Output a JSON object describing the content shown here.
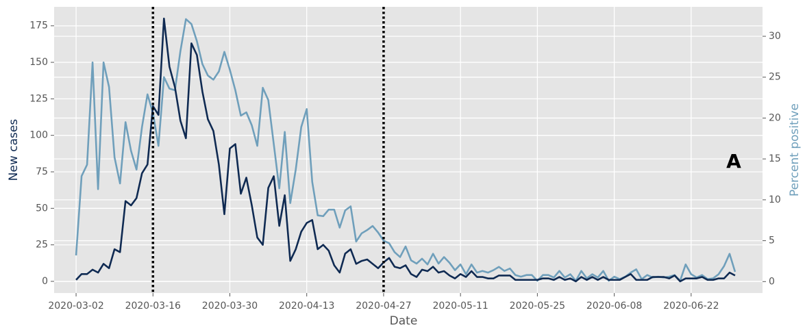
{
  "chart_data": {
    "type": "line",
    "x": [
      "2020-03-02",
      "2020-03-03",
      "2020-03-04",
      "2020-03-05",
      "2020-03-06",
      "2020-03-07",
      "2020-03-08",
      "2020-03-09",
      "2020-03-10",
      "2020-03-11",
      "2020-03-12",
      "2020-03-13",
      "2020-03-14",
      "2020-03-15",
      "2020-03-16",
      "2020-03-17",
      "2020-03-18",
      "2020-03-19",
      "2020-03-20",
      "2020-03-21",
      "2020-03-22",
      "2020-03-23",
      "2020-03-24",
      "2020-03-25",
      "2020-03-26",
      "2020-03-27",
      "2020-03-28",
      "2020-03-29",
      "2020-03-30",
      "2020-03-31",
      "2020-04-01",
      "2020-04-02",
      "2020-04-03",
      "2020-04-04",
      "2020-04-05",
      "2020-04-06",
      "2020-04-07",
      "2020-04-08",
      "2020-04-09",
      "2020-04-10",
      "2020-04-11",
      "2020-04-12",
      "2020-04-13",
      "2020-04-14",
      "2020-04-15",
      "2020-04-16",
      "2020-04-17",
      "2020-04-18",
      "2020-04-19",
      "2020-04-20",
      "2020-04-21",
      "2020-04-22",
      "2020-04-23",
      "2020-04-24",
      "2020-04-25",
      "2020-04-26",
      "2020-04-27",
      "2020-04-28",
      "2020-04-29",
      "2020-04-30",
      "2020-05-01",
      "2020-05-02",
      "2020-05-03",
      "2020-05-04",
      "2020-05-05",
      "2020-05-06",
      "2020-05-07",
      "2020-05-08",
      "2020-05-09",
      "2020-05-10",
      "2020-05-11",
      "2020-05-12",
      "2020-05-13",
      "2020-05-14",
      "2020-05-15",
      "2020-05-16",
      "2020-05-17",
      "2020-05-18",
      "2020-05-19",
      "2020-05-20",
      "2020-05-21",
      "2020-05-22",
      "2020-05-23",
      "2020-05-24",
      "2020-05-25",
      "2020-05-26",
      "2020-05-27",
      "2020-05-28",
      "2020-05-29",
      "2020-05-30",
      "2020-05-31",
      "2020-06-01",
      "2020-06-02",
      "2020-06-03",
      "2020-06-04",
      "2020-06-05",
      "2020-06-06",
      "2020-06-07",
      "2020-06-08",
      "2020-06-09",
      "2020-06-10",
      "2020-06-11",
      "2020-06-12",
      "2020-06-13",
      "2020-06-14",
      "2020-06-15",
      "2020-06-16",
      "2020-06-17",
      "2020-06-18",
      "2020-06-19",
      "2020-06-20",
      "2020-06-21",
      "2020-06-22",
      "2020-06-23",
      "2020-06-24",
      "2020-06-25",
      "2020-06-26",
      "2020-06-27",
      "2020-06-28",
      "2020-06-29",
      "2020-06-30"
    ],
    "series": [
      {
        "name": "New cases",
        "color": "#0f2a52",
        "axis": "y",
        "values": [
          1,
          5,
          5,
          8,
          6,
          12,
          9,
          22,
          20,
          55,
          52,
          57,
          74,
          80,
          120,
          114,
          180,
          147,
          133,
          110,
          98,
          163,
          155,
          130,
          111,
          103,
          80,
          46,
          91,
          94,
          60,
          71,
          52,
          30,
          25,
          64,
          72,
          38,
          59,
          14,
          22,
          34,
          40,
          42,
          22,
          25,
          21,
          11,
          6,
          19,
          22,
          12,
          14,
          15,
          12,
          9,
          13,
          16,
          10,
          9,
          11,
          5,
          3,
          8,
          7,
          10,
          6,
          7,
          4,
          2,
          5,
          3,
          7,
          3,
          3,
          2,
          2,
          4,
          4,
          4,
          1,
          1,
          1,
          1,
          1,
          2,
          2,
          1,
          3,
          1,
          2,
          0,
          3,
          1,
          3,
          1,
          3,
          1,
          1,
          1,
          3,
          5,
          1,
          1,
          1,
          3,
          3,
          3,
          2,
          4,
          0,
          2,
          2,
          2,
          3,
          1,
          1,
          2,
          2,
          6,
          4
        ]
      },
      {
        "name": "Percent positive",
        "color": "#6f9fbb",
        "axis": "y2",
        "values": [
          3.2,
          12.9,
          14.3,
          26.8,
          11.3,
          26.8,
          23.8,
          15.2,
          12,
          19.5,
          16,
          13.7,
          18.9,
          22.9,
          20.6,
          16.6,
          25,
          23.6,
          23.4,
          28.2,
          32.1,
          31.5,
          29.4,
          26.6,
          25.2,
          24.7,
          25.7,
          28.1,
          25.9,
          23.4,
          20.3,
          20.7,
          19.1,
          16.6,
          23.7,
          22.2,
          16.8,
          11.4,
          18.3,
          9.6,
          13.7,
          18.9,
          21.1,
          12.2,
          8.1,
          8,
          8.8,
          8.8,
          6.6,
          8.7,
          9.2,
          4.9,
          5.9,
          6.3,
          6.8,
          6,
          5,
          4.7,
          3.6,
          3,
          4.3,
          2.6,
          2.2,
          2.8,
          2.1,
          3.4,
          2.2,
          3,
          2.3,
          1.4,
          2.1,
          0.9,
          2.1,
          1.1,
          1.3,
          1.1,
          1.4,
          1.8,
          1.3,
          1.6,
          0.8,
          0.6,
          0.8,
          0.8,
          0.1,
          0.8,
          0.8,
          0.5,
          1.3,
          0.5,
          0.9,
          0.1,
          1.3,
          0.4,
          0.9,
          0.5,
          1.3,
          0.1,
          0.6,
          0.3,
          0.6,
          1.1,
          1.5,
          0.3,
          0.8,
          0.5,
          0.6,
          0.5,
          0.6,
          0.8,
          0.1,
          2.1,
          0.9,
          0.5,
          0.8,
          0.3,
          0.4,
          0.9,
          1.9,
          3.4,
          1.2
        ]
      }
    ],
    "xlabel": "Date",
    "ylabel": "New cases",
    "y2label": "Percent positive",
    "xlim": [
      "2020-02-27",
      "2020-07-05"
    ],
    "xticks": [
      "2020-03-02",
      "2020-03-16",
      "2020-03-30",
      "2020-04-13",
      "2020-04-27",
      "2020-05-11",
      "2020-05-25",
      "2020-06-08",
      "2020-06-22"
    ],
    "ylim": [
      -8,
      188
    ],
    "yticks": [
      0,
      25,
      50,
      75,
      100,
      125,
      150,
      175
    ],
    "y2lim": [
      -1.4,
      33.6
    ],
    "y2ticks": [
      0,
      5,
      10,
      15,
      20,
      25,
      30
    ],
    "vlines": [
      "2020-03-16",
      "2020-04-27"
    ],
    "annotation": "A",
    "grid": true
  }
}
